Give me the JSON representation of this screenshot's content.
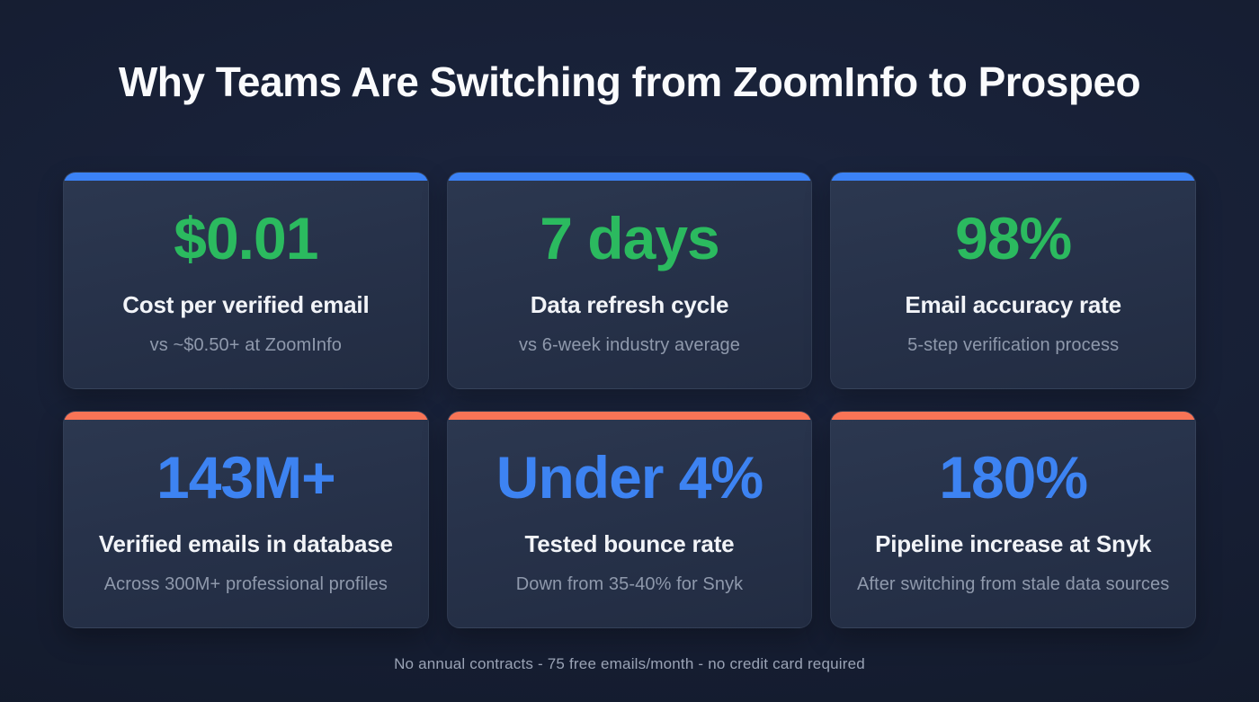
{
  "page": {
    "title": "Why Teams Are Switching from ZoomInfo to Prospeo",
    "footer": "No annual contracts - 75 free emails/month - no credit card required"
  },
  "colors": {
    "background": "#161e33",
    "card_background": "#27324a",
    "blue_accent": "#3b82f6",
    "orange_accent": "#f97456",
    "green_value": "#2bba5f",
    "blue_value": "#3d83f2",
    "label_text": "#f2f4f8",
    "sub_text": "#8f99ac",
    "footer_text": "#9aa3b5"
  },
  "cards": [
    {
      "accent": "blue",
      "value": "$0.01",
      "value_color": "green",
      "label": "Cost per verified email",
      "sub": "vs ~$0.50+ at ZoomInfo"
    },
    {
      "accent": "blue",
      "value": "7 days",
      "value_color": "green",
      "label": "Data refresh cycle",
      "sub": "vs 6-week industry average"
    },
    {
      "accent": "blue",
      "value": "98%",
      "value_color": "green",
      "label": "Email accuracy rate",
      "sub": "5-step verification process"
    },
    {
      "accent": "orange",
      "value": "143M+",
      "value_color": "blue",
      "label": "Verified emails in database",
      "sub": "Across 300M+ professional profiles"
    },
    {
      "accent": "orange",
      "value": "Under 4%",
      "value_color": "blue",
      "label": "Tested bounce rate",
      "sub": "Down from 35-40% for Snyk"
    },
    {
      "accent": "orange",
      "value": "180%",
      "value_color": "blue",
      "label": "Pipeline increase at Snyk",
      "sub": "After switching from stale data sources"
    }
  ]
}
